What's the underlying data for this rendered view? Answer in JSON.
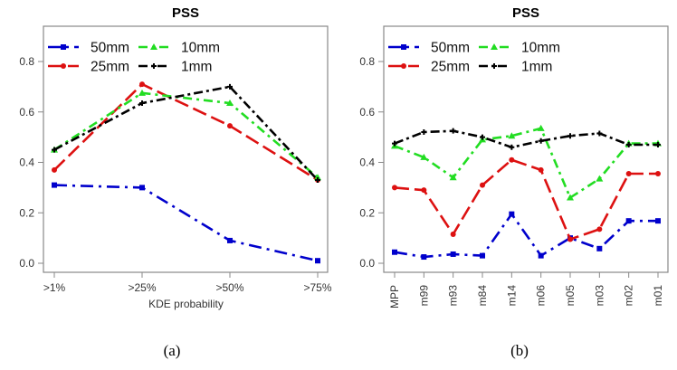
{
  "chart_data": [
    {
      "type": "line",
      "panel": "a",
      "title": "PSS",
      "xlabel": "KDE probability",
      "ylabel": "",
      "caption": "(a)",
      "categories": [
        ">1%",
        ">25%",
        ">50%",
        ">75%"
      ],
      "yticks": [
        "0.0",
        "0.2",
        "0.4",
        "0.6",
        "0.8"
      ],
      "ylim": [
        0,
        0.8
      ],
      "grid": false,
      "legend_position": "top-left",
      "series": [
        {
          "name": "50mm",
          "color": "#0000cc",
          "marker": "square",
          "values": [
            0.31,
            0.3,
            0.09,
            0.01
          ]
        },
        {
          "name": "25mm",
          "color": "#dd1111",
          "marker": "circle",
          "values": [
            0.37,
            0.71,
            0.545,
            0.33
          ]
        },
        {
          "name": "10mm",
          "color": "#22dd22",
          "marker": "triangle",
          "values": [
            0.45,
            0.675,
            0.635,
            0.34
          ]
        },
        {
          "name": "1mm",
          "color": "#000000",
          "marker": "plus",
          "values": [
            0.45,
            0.635,
            0.7,
            0.33
          ]
        }
      ]
    },
    {
      "type": "line",
      "panel": "b",
      "title": "PSS",
      "xlabel": "",
      "ylabel": "",
      "caption": "(b)",
      "categories": [
        "MPP",
        "m99",
        "m93",
        "m84",
        "m14",
        "m06",
        "m05",
        "m03",
        "m02",
        "m01"
      ],
      "yticks": [
        "0.0",
        "0.2",
        "0.4",
        "0.6",
        "0.8"
      ],
      "ylim": [
        0,
        0.8
      ],
      "grid": false,
      "legend_position": "top-left",
      "series": [
        {
          "name": "50mm",
          "color": "#0000cc",
          "marker": "square",
          "values": [
            0.044,
            0.025,
            0.036,
            0.03,
            0.195,
            0.03,
            0.1,
            0.058,
            0.168,
            0.168
          ]
        },
        {
          "name": "25mm",
          "color": "#dd1111",
          "marker": "circle",
          "values": [
            0.3,
            0.29,
            0.115,
            0.31,
            0.41,
            0.37,
            0.095,
            0.135,
            0.355,
            0.355
          ]
        },
        {
          "name": "10mm",
          "color": "#22dd22",
          "marker": "triangle",
          "values": [
            0.465,
            0.42,
            0.34,
            0.49,
            0.505,
            0.535,
            0.26,
            0.335,
            0.475,
            0.475
          ]
        },
        {
          "name": "1mm",
          "color": "#000000",
          "marker": "plus",
          "values": [
            0.475,
            0.52,
            0.525,
            0.5,
            0.46,
            0.485,
            0.505,
            0.515,
            0.47,
            0.47
          ]
        }
      ]
    }
  ]
}
